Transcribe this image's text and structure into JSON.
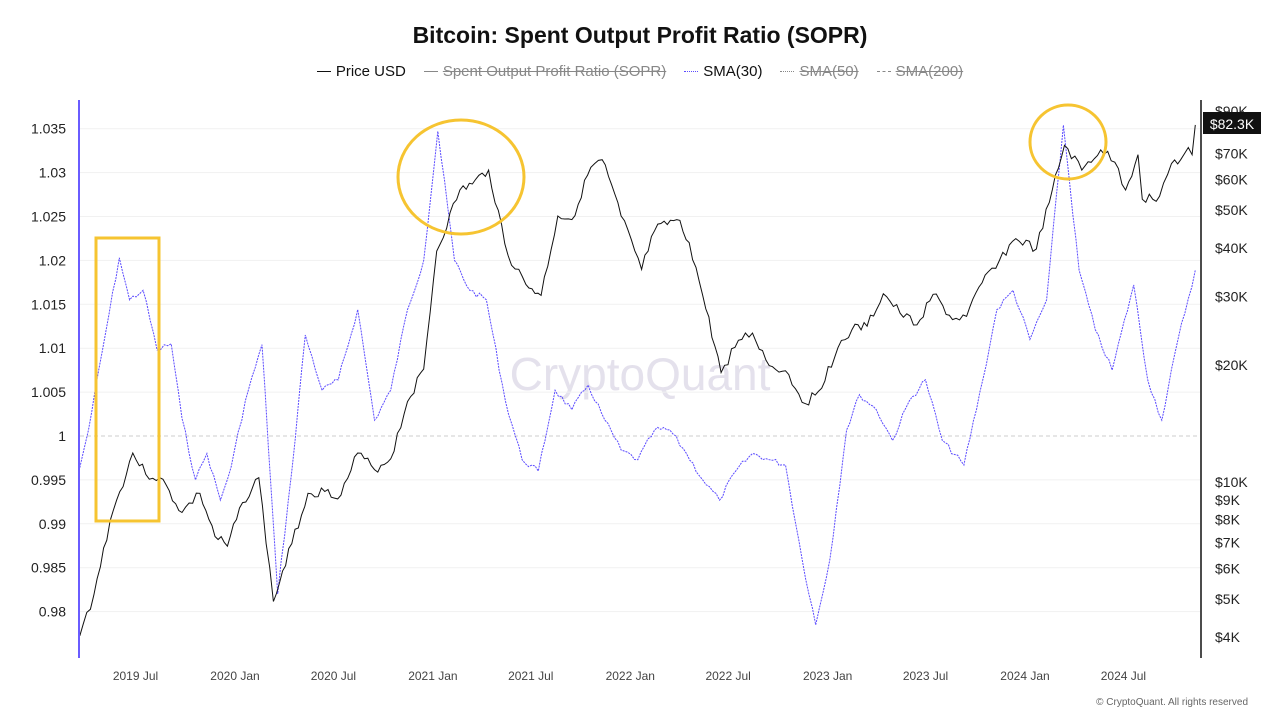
{
  "chart_data": {
    "type": "line",
    "title": "Bitcoin: Spent Output Profit Ratio (SOPR)",
    "legend": [
      {
        "name": "Price USD",
        "visible": true,
        "style": "solid",
        "color": "#111111"
      },
      {
        "name": "Spent Output Profit Ratio (SOPR)",
        "visible": false,
        "style": "solid",
        "color": "#888888"
      },
      {
        "name": "SMA(30)",
        "visible": true,
        "style": "dotted",
        "color": "#5b4bff"
      },
      {
        "name": "SMA(50)",
        "visible": false,
        "style": "dotted",
        "color": "#888888"
      },
      {
        "name": "SMA(200)",
        "visible": false,
        "style": "dashed",
        "color": "#888888"
      }
    ],
    "legend_position": "top-center",
    "left_axis": {
      "ticks": [
        "1.035",
        "1.03",
        "1.025",
        "1.02",
        "1.015",
        "1.01",
        "1.005",
        "1",
        "0.995",
        "0.99",
        "0.985",
        "0.98"
      ],
      "ylim": [
        0.9765,
        1.0385
      ]
    },
    "right_axis": {
      "scale": "log",
      "ticks": [
        "$90K",
        "$70K",
        "$60K",
        "$50K",
        "$40K",
        "$30K",
        "$20K",
        "$10K",
        "$9K",
        "$8K",
        "$7K",
        "$6K",
        "$5K",
        "$4K"
      ],
      "tick_values": [
        90000,
        70000,
        60000,
        50000,
        40000,
        30000,
        20000,
        10000,
        9000,
        8000,
        7000,
        6000,
        5000,
        4000
      ],
      "current_label": "$82.3K",
      "current_value": 82300
    },
    "x_ticks": [
      "2019 Jul",
      "2020 Jan",
      "2020 Jul",
      "2021 Jan",
      "2021 Jul",
      "2022 Jan",
      "2022 Jul",
      "2023 Jan",
      "2023 Jul",
      "2024 Jan",
      "2024 Jul"
    ],
    "x_tick_dates": [
      "2019-07-01",
      "2020-01-01",
      "2020-07-01",
      "2021-01-01",
      "2021-07-01",
      "2022-01-01",
      "2022-07-01",
      "2023-01-01",
      "2023-07-01",
      "2024-01-01",
      "2024-07-01"
    ],
    "reference_line": 1,
    "price_usd": [
      [
        "2019-03-20",
        4000
      ],
      [
        "2019-04-15",
        5100
      ],
      [
        "2019-05-15",
        7900
      ],
      [
        "2019-06-26",
        11800
      ],
      [
        "2019-07-20",
        10400
      ],
      [
        "2019-08-15",
        10200
      ],
      [
        "2019-09-25",
        8300
      ],
      [
        "2019-10-28",
        9300
      ],
      [
        "2019-11-25",
        7200
      ],
      [
        "2019-12-18",
        6800
      ],
      [
        "2020-01-15",
        8800
      ],
      [
        "2020-02-14",
        10200
      ],
      [
        "2020-03-12",
        4900
      ],
      [
        "2020-04-15",
        6900
      ],
      [
        "2020-05-15",
        9300
      ],
      [
        "2020-06-15",
        9400
      ],
      [
        "2020-07-15",
        9200
      ],
      [
        "2020-08-15",
        11800
      ],
      [
        "2020-09-15",
        10700
      ],
      [
        "2020-10-15",
        11400
      ],
      [
        "2020-11-15",
        16000
      ],
      [
        "2020-12-15",
        19400
      ],
      [
        "2021-01-08",
        39000
      ],
      [
        "2021-02-20",
        56000
      ],
      [
        "2021-03-15",
        58000
      ],
      [
        "2021-04-14",
        63000
      ],
      [
        "2021-05-20",
        38000
      ],
      [
        "2021-06-22",
        32000
      ],
      [
        "2021-07-20",
        30000
      ],
      [
        "2021-08-20",
        48000
      ],
      [
        "2021-09-15",
        47000
      ],
      [
        "2021-10-20",
        64000
      ],
      [
        "2021-11-10",
        67000
      ],
      [
        "2021-12-15",
        48000
      ],
      [
        "2022-01-22",
        35000
      ],
      [
        "2022-02-15",
        44000
      ],
      [
        "2022-03-28",
        47000
      ],
      [
        "2022-04-20",
        41000
      ],
      [
        "2022-05-15",
        30000
      ],
      [
        "2022-06-18",
        19000
      ],
      [
        "2022-07-20",
        23000
      ],
      [
        "2022-08-15",
        24000
      ],
      [
        "2022-09-15",
        19800
      ],
      [
        "2022-10-15",
        19200
      ],
      [
        "2022-11-21",
        15800
      ],
      [
        "2022-12-15",
        17000
      ],
      [
        "2023-01-20",
        22000
      ],
      [
        "2023-02-15",
        24500
      ],
      [
        "2023-03-15",
        25000
      ],
      [
        "2023-04-14",
        30300
      ],
      [
        "2023-05-15",
        27000
      ],
      [
        "2023-06-15",
        25200
      ],
      [
        "2023-07-15",
        30200
      ],
      [
        "2023-08-20",
        26000
      ],
      [
        "2023-09-15",
        26500
      ],
      [
        "2023-10-25",
        34500
      ],
      [
        "2023-11-15",
        37000
      ],
      [
        "2023-12-15",
        42000
      ],
      [
        "2024-01-22",
        39500
      ],
      [
        "2024-02-15",
        52000
      ],
      [
        "2024-03-14",
        73000
      ],
      [
        "2024-04-15",
        63000
      ],
      [
        "2024-05-20",
        71000
      ],
      [
        "2024-06-15",
        66000
      ],
      [
        "2024-07-05",
        56000
      ],
      [
        "2024-07-28",
        69000
      ],
      [
        "2024-08-05",
        53000
      ],
      [
        "2024-09-06",
        54000
      ],
      [
        "2024-09-28",
        65500
      ],
      [
        "2024-10-15",
        67000
      ],
      [
        "2024-10-29",
        72000
      ],
      [
        "2024-11-05",
        69000
      ],
      [
        "2024-11-11",
        82300
      ]
    ],
    "sopr_sma30": [
      [
        "2019-03-20",
        0.9964
      ],
      [
        "2019-04-05",
        1.0007
      ],
      [
        "2019-05-01",
        1.0098
      ],
      [
        "2019-06-01",
        1.0203
      ],
      [
        "2019-06-20",
        1.0155
      ],
      [
        "2019-07-15",
        1.0166
      ],
      [
        "2019-08-10",
        1.0098
      ],
      [
        "2019-09-05",
        1.0105
      ],
      [
        "2019-09-25",
        1.002
      ],
      [
        "2019-10-20",
        0.995
      ],
      [
        "2019-11-10",
        0.998
      ],
      [
        "2019-12-05",
        0.9927
      ],
      [
        "2019-12-25",
        0.9965
      ],
      [
        "2020-01-20",
        1.004
      ],
      [
        "2020-02-20",
        1.0104
      ],
      [
        "2020-03-20",
        0.982
      ],
      [
        "2020-04-15",
        0.996
      ],
      [
        "2020-05-10",
        1.0115
      ],
      [
        "2020-06-10",
        1.0052
      ],
      [
        "2020-07-10",
        1.0064
      ],
      [
        "2020-08-15",
        1.0144
      ],
      [
        "2020-09-15",
        1.0018
      ],
      [
        "2020-10-15",
        1.0052
      ],
      [
        "2020-11-15",
        1.0144
      ],
      [
        "2020-12-15",
        1.02
      ],
      [
        "2021-01-10",
        1.0347
      ],
      [
        "2021-02-10",
        1.02
      ],
      [
        "2021-03-10",
        1.0166
      ],
      [
        "2021-04-10",
        1.0155
      ],
      [
        "2021-05-15",
        1.004
      ],
      [
        "2021-06-15",
        0.9973
      ],
      [
        "2021-07-15",
        0.996
      ],
      [
        "2021-08-15",
        1.0052
      ],
      [
        "2021-09-15",
        1.003
      ],
      [
        "2021-10-15",
        1.0058
      ],
      [
        "2021-11-15",
        1.0018
      ],
      [
        "2021-12-15",
        0.9984
      ],
      [
        "2022-01-15",
        0.9973
      ],
      [
        "2022-02-15",
        1.0007
      ],
      [
        "2022-03-15",
        1.0007
      ],
      [
        "2022-04-15",
        0.998
      ],
      [
        "2022-05-15",
        0.995
      ],
      [
        "2022-06-15",
        0.9927
      ],
      [
        "2022-07-15",
        0.996
      ],
      [
        "2022-08-15",
        0.998
      ],
      [
        "2022-09-15",
        0.9973
      ],
      [
        "2022-10-15",
        0.9967
      ],
      [
        "2022-11-15",
        0.9859
      ],
      [
        "2022-12-10",
        0.9785
      ],
      [
        "2023-01-05",
        0.9859
      ],
      [
        "2023-02-05",
        1.0007
      ],
      [
        "2023-03-01",
        1.0047
      ],
      [
        "2023-04-01",
        1.003
      ],
      [
        "2023-05-01",
        0.9995
      ],
      [
        "2023-06-01",
        1.004
      ],
      [
        "2023-07-01",
        1.0064
      ],
      [
        "2023-08-01",
        0.9995
      ],
      [
        "2023-09-10",
        0.9967
      ],
      [
        "2023-10-15",
        1.0064
      ],
      [
        "2023-11-10",
        1.0144
      ],
      [
        "2023-12-10",
        1.0166
      ],
      [
        "2024-01-10",
        1.011
      ],
      [
        "2024-02-10",
        1.0155
      ],
      [
        "2024-03-12",
        1.0354
      ],
      [
        "2024-04-10",
        1.0189
      ],
      [
        "2024-05-10",
        1.0121
      ],
      [
        "2024-06-10",
        1.0075
      ],
      [
        "2024-07-20",
        1.0172
      ],
      [
        "2024-08-15",
        1.0064
      ],
      [
        "2024-09-10",
        1.0018
      ],
      [
        "2024-10-10",
        1.011
      ],
      [
        "2024-11-11",
        1.0189
      ]
    ]
  },
  "watermark": "CryptoQuant",
  "copyright": "© CryptoQuant. All rights reserved",
  "colors": {
    "price": "#111111",
    "sma30": "#5b4bff",
    "annotation": "#f6c431",
    "axis_left": "#6a5cff"
  }
}
